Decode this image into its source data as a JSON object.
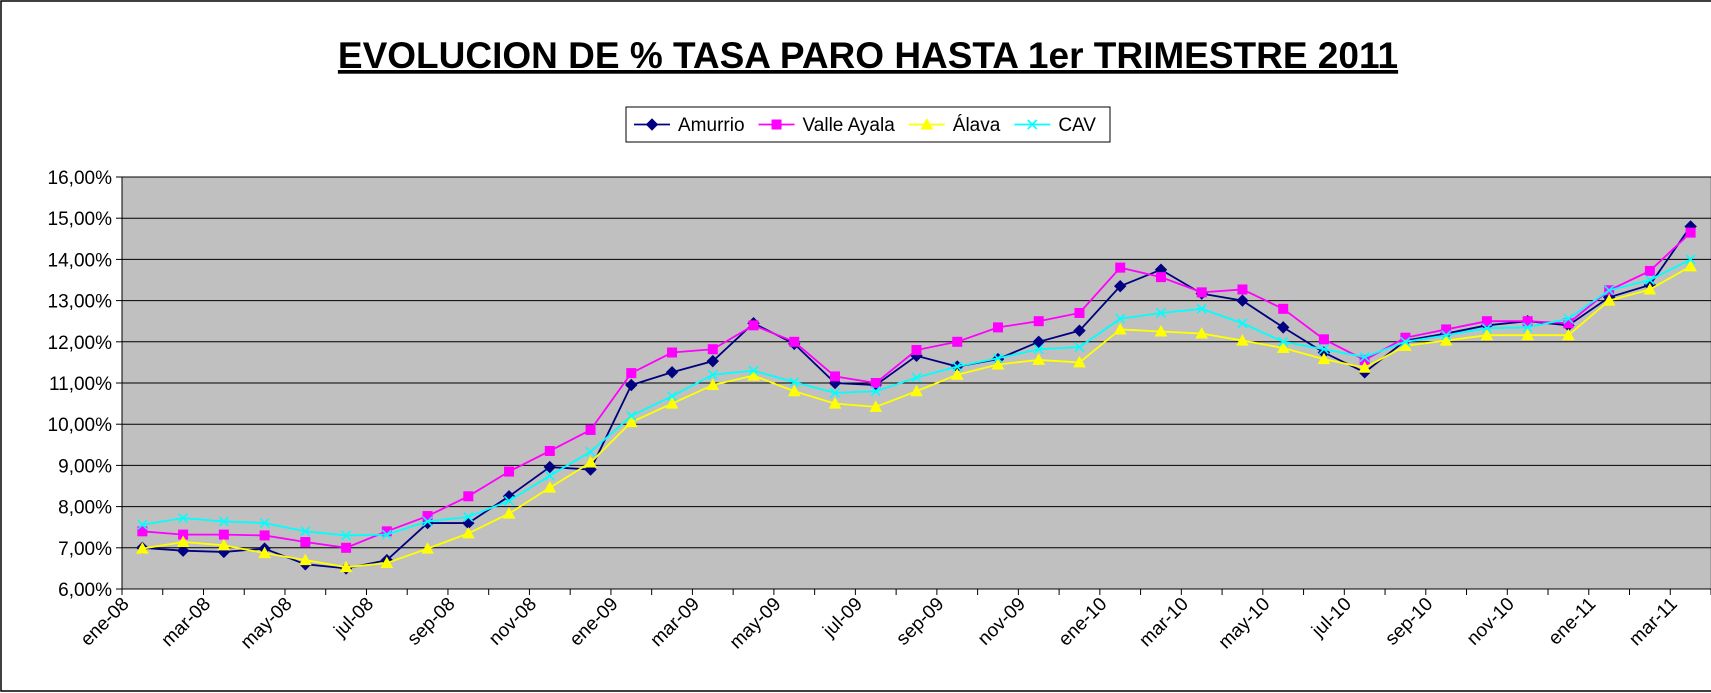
{
  "chart_data": {
    "type": "line",
    "title": "EVOLUCION DE % TASA PARO HASTA 1er TRIMESTRE 2011",
    "categories": [
      "ene-08",
      null,
      "mar-08",
      null,
      "may-08",
      null,
      "jul-08",
      null,
      "sep-08",
      null,
      "nov-08",
      null,
      "ene-09",
      null,
      "mar-09",
      null,
      "may-09",
      null,
      "jul-09",
      null,
      "sep-09",
      null,
      "nov-09",
      null,
      "ene-10",
      null,
      "mar-10",
      null,
      "may-10",
      null,
      "jul-10",
      null,
      "sep-10",
      null,
      "nov-10",
      null,
      "ene-11",
      null,
      "mar-11"
    ],
    "series": [
      {
        "name": "Amurrio",
        "color": "#000080",
        "marker": "diamond",
        "values": [
          7.0,
          6.93,
          6.9,
          6.98,
          6.6,
          6.5,
          6.7,
          7.6,
          7.6,
          8.25,
          8.96,
          8.9,
          10.95,
          11.26,
          11.53,
          12.45,
          11.95,
          11.0,
          10.95,
          11.66,
          11.4,
          11.58,
          12.0,
          12.27,
          13.35,
          13.75,
          13.17,
          13.0,
          12.35,
          11.74,
          11.26,
          12.03,
          12.2,
          12.4,
          12.5,
          12.4,
          13.08,
          13.38,
          14.8
        ]
      },
      {
        "name": "Valle Ayala",
        "color": "#ff00ff",
        "marker": "square",
        "values": [
          7.4,
          7.32,
          7.32,
          7.3,
          7.14,
          7.0,
          7.4,
          7.77,
          8.25,
          8.85,
          9.35,
          9.86,
          11.24,
          11.74,
          11.82,
          12.4,
          12.0,
          11.16,
          11.0,
          11.8,
          12.0,
          12.35,
          12.5,
          12.7,
          13.8,
          13.57,
          13.2,
          13.27,
          12.8,
          12.06,
          11.56,
          12.1,
          12.3,
          12.5,
          12.5,
          12.45,
          13.25,
          13.72,
          14.65
        ]
      },
      {
        "name": "Álava",
        "color": "#ffff00",
        "marker": "triangle",
        "values": [
          6.98,
          7.14,
          7.06,
          6.87,
          6.7,
          6.53,
          6.63,
          6.98,
          7.35,
          7.83,
          8.46,
          9.07,
          10.05,
          10.5,
          10.95,
          11.18,
          10.8,
          10.5,
          10.42,
          10.8,
          11.2,
          11.45,
          11.56,
          11.5,
          12.3,
          12.25,
          12.2,
          12.03,
          11.85,
          11.58,
          11.37,
          11.9,
          12.03,
          12.16,
          12.16,
          12.16,
          13.0,
          13.27,
          13.83
        ]
      },
      {
        "name": "CAV",
        "color": "#00ffff",
        "marker": "x",
        "values": [
          7.56,
          7.72,
          7.64,
          7.6,
          7.4,
          7.3,
          7.32,
          7.64,
          7.75,
          8.14,
          8.75,
          9.33,
          10.2,
          10.68,
          11.2,
          11.3,
          11.02,
          10.76,
          10.8,
          11.13,
          11.4,
          11.6,
          11.82,
          11.87,
          12.56,
          12.7,
          12.8,
          12.45,
          12.0,
          11.82,
          11.63,
          12.0,
          12.16,
          12.33,
          12.35,
          12.56,
          13.25,
          13.5,
          14.0
        ]
      }
    ],
    "ylim": [
      6,
      16
    ],
    "yticks": [
      {
        "value": 6,
        "label": "6,00%"
      },
      {
        "value": 7,
        "label": "7,00%"
      },
      {
        "value": 8,
        "label": "8,00%"
      },
      {
        "value": 9,
        "label": "9,00%"
      },
      {
        "value": 10,
        "label": "10,00%"
      },
      {
        "value": 11,
        "label": "11,00%"
      },
      {
        "value": 12,
        "label": "12,00%"
      },
      {
        "value": 13,
        "label": "13,00%"
      },
      {
        "value": 14,
        "label": "14,00%"
      },
      {
        "value": 15,
        "label": "15,00%"
      },
      {
        "value": 16,
        "label": "16,00%"
      }
    ],
    "grid": true,
    "legend": "top",
    "plot_background": "#c0c0c0"
  }
}
